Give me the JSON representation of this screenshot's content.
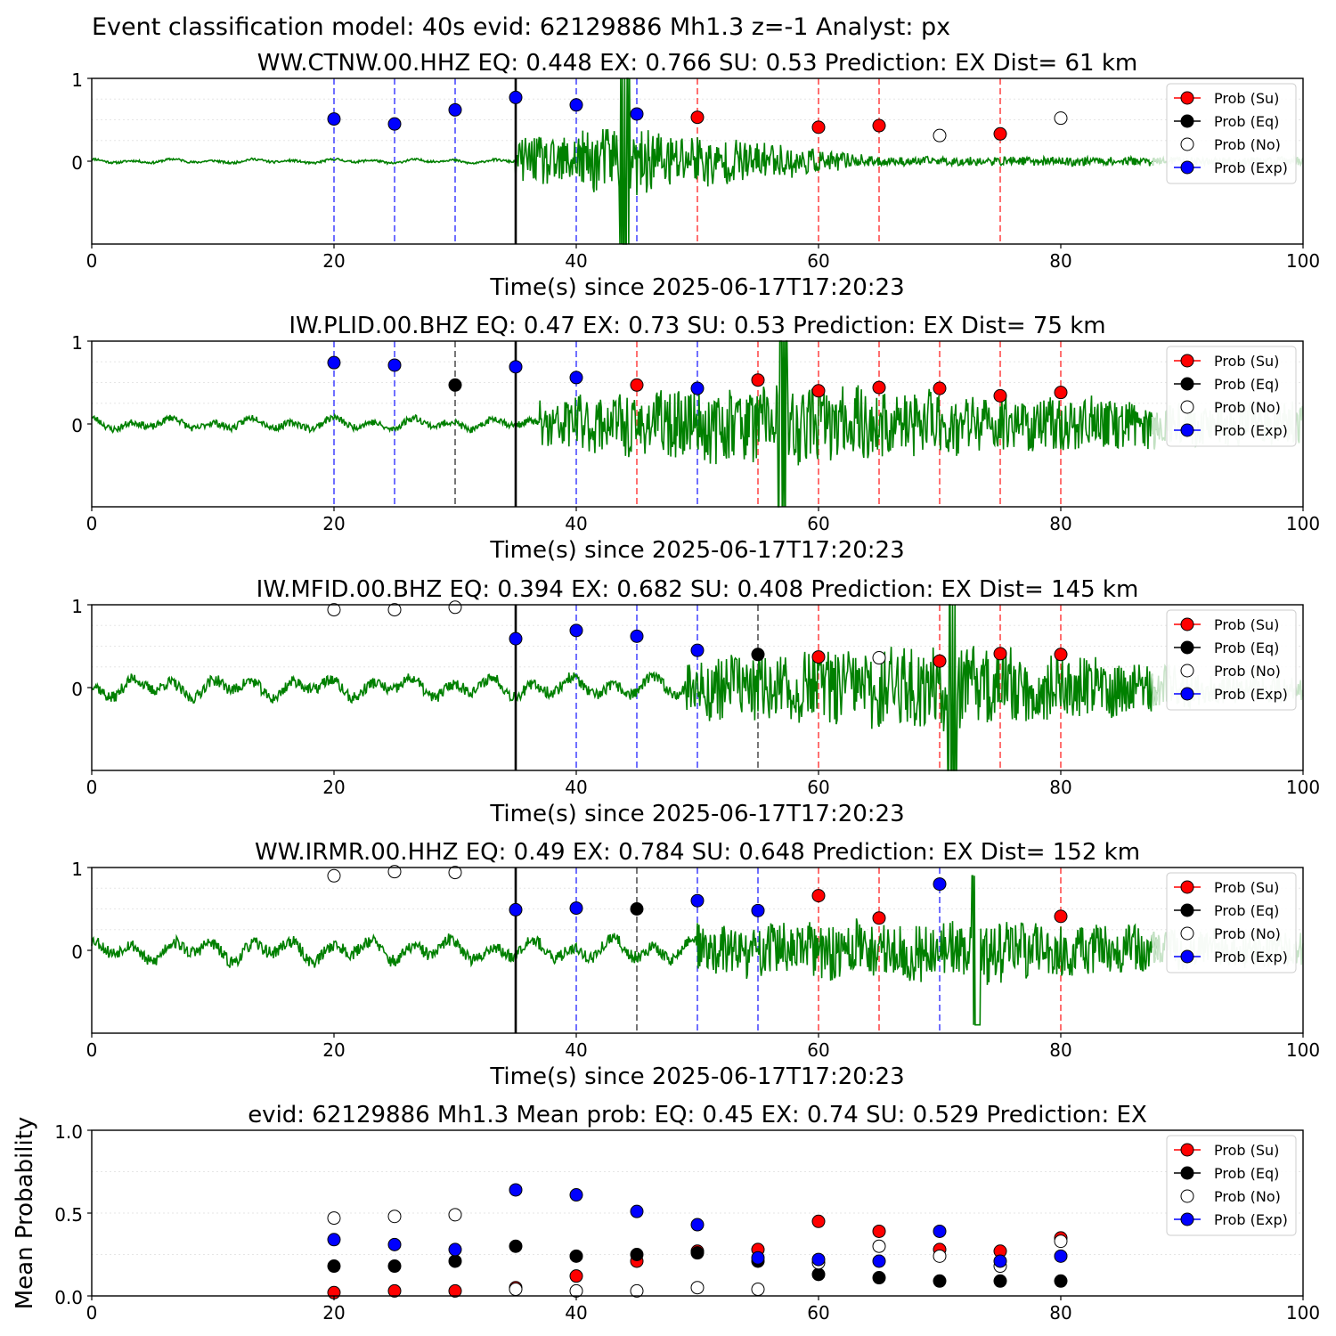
{
  "figure_title": "Event classification model: 40s evid: 62129886 Mh1.3 z=-1 Analyst: px",
  "colors": {
    "su": "#ff0000",
    "eq": "#000000",
    "exp": "#0000ff",
    "trace": "#008000",
    "trace_faded": "#c7e3c7",
    "vline_su": "#ff4d4d",
    "vline_eq": "#555555",
    "vline_exp": "#4d4dff"
  },
  "legend_labels": [
    "Prob (Su)",
    "Prob (Eq)",
    "Prob (No)",
    "Prob (Exp)"
  ],
  "chart_data": [
    {
      "type": "scatter",
      "title": "WW.CTNW.00.HHZ   EQ: 0.448  EX: 0.766  SU: 0.53   Prediction: EX    Dist= 61 km",
      "xlabel": "Time(s) since 2025-06-17T17:20:23",
      "ylabel": "",
      "xlim": [
        0,
        100
      ],
      "ylim": [
        -1,
        1
      ],
      "xticks": [
        "0",
        "20",
        "40",
        "60",
        "80",
        "100"
      ],
      "yticks": [
        "0",
        "1"
      ],
      "arrival_time": 35,
      "waveform": {
        "onset": 35,
        "pre_amp": 0.04,
        "post_amp": 0.5,
        "peak_time": 44,
        "decay_end": 65,
        "tail_amp": 0.06,
        "seed": 11
      },
      "points": [
        {
          "t": 20,
          "p": 0.51,
          "class": "exp"
        },
        {
          "t": 25,
          "p": 0.45,
          "class": "exp"
        },
        {
          "t": 30,
          "p": 0.62,
          "class": "exp"
        },
        {
          "t": 35,
          "p": 0.77,
          "class": "exp"
        },
        {
          "t": 40,
          "p": 0.68,
          "class": "exp"
        },
        {
          "t": 45,
          "p": 0.57,
          "class": "exp"
        },
        {
          "t": 50,
          "p": 0.53,
          "class": "su"
        },
        {
          "t": 60,
          "p": 0.41,
          "class": "su"
        },
        {
          "t": 65,
          "p": 0.43,
          "class": "su"
        },
        {
          "t": 70,
          "p": 0.31,
          "class": "no"
        },
        {
          "t": 75,
          "p": 0.33,
          "class": "su"
        },
        {
          "t": 80,
          "p": 0.52,
          "class": "no"
        }
      ]
    },
    {
      "type": "scatter",
      "title": "IW.PLID.00.BHZ   EQ: 0.47  EX: 0.73  SU: 0.53   Prediction: EX    Dist= 75 km",
      "xlabel": "Time(s) since 2025-06-17T17:20:23",
      "ylabel": "",
      "xlim": [
        0,
        100
      ],
      "ylim": [
        -1,
        1
      ],
      "xticks": [
        "0",
        "20",
        "40",
        "60",
        "80",
        "100"
      ],
      "yticks": [
        "0",
        "1"
      ],
      "arrival_time": 35,
      "waveform": {
        "onset": 37,
        "pre_amp": 0.12,
        "post_amp": 0.55,
        "peak_time": 57,
        "decay_end": 90,
        "tail_amp": 0.3,
        "seed": 23
      },
      "points": [
        {
          "t": 20,
          "p": 0.74,
          "class": "exp"
        },
        {
          "t": 25,
          "p": 0.71,
          "class": "exp"
        },
        {
          "t": 30,
          "p": 0.47,
          "class": "eq"
        },
        {
          "t": 35,
          "p": 0.69,
          "class": "exp"
        },
        {
          "t": 40,
          "p": 0.56,
          "class": "exp"
        },
        {
          "t": 45,
          "p": 0.47,
          "class": "su"
        },
        {
          "t": 50,
          "p": 0.43,
          "class": "exp"
        },
        {
          "t": 55,
          "p": 0.53,
          "class": "su"
        },
        {
          "t": 60,
          "p": 0.4,
          "class": "su"
        },
        {
          "t": 65,
          "p": 0.44,
          "class": "su"
        },
        {
          "t": 70,
          "p": 0.43,
          "class": "su"
        },
        {
          "t": 75,
          "p": 0.34,
          "class": "su"
        },
        {
          "t": 80,
          "p": 0.38,
          "class": "su"
        }
      ]
    },
    {
      "type": "scatter",
      "title": "IW.MFID.00.BHZ   EQ: 0.394  EX: 0.682  SU: 0.408   Prediction: EX    Dist= 145 km",
      "xlabel": "Time(s) since 2025-06-17T17:20:23",
      "ylabel": "",
      "xlim": [
        0,
        100
      ],
      "ylim": [
        -1,
        1
      ],
      "xticks": [
        "0",
        "20",
        "40",
        "60",
        "80",
        "100"
      ],
      "yticks": [
        "0",
        "1"
      ],
      "arrival_time": 35,
      "waveform": {
        "onset": 49,
        "pre_amp": 0.2,
        "post_amp": 0.6,
        "peak_time": 71,
        "decay_end": 95,
        "tail_amp": 0.2,
        "seed": 37
      },
      "points": [
        {
          "t": 20,
          "p": 0.94,
          "class": "no"
        },
        {
          "t": 25,
          "p": 0.94,
          "class": "no"
        },
        {
          "t": 30,
          "p": 0.97,
          "class": "no"
        },
        {
          "t": 35,
          "p": 0.59,
          "class": "exp"
        },
        {
          "t": 40,
          "p": 0.69,
          "class": "exp"
        },
        {
          "t": 45,
          "p": 0.62,
          "class": "exp"
        },
        {
          "t": 50,
          "p": 0.45,
          "class": "exp"
        },
        {
          "t": 55,
          "p": 0.4,
          "class": "eq"
        },
        {
          "t": 60,
          "p": 0.37,
          "class": "su"
        },
        {
          "t": 65,
          "p": 0.36,
          "class": "no"
        },
        {
          "t": 70,
          "p": 0.32,
          "class": "su"
        },
        {
          "t": 75,
          "p": 0.41,
          "class": "su"
        },
        {
          "t": 80,
          "p": 0.4,
          "class": "su"
        }
      ]
    },
    {
      "type": "scatter",
      "title": "WW.IRMR.00.HHZ   EQ: 0.49  EX: 0.784  SU: 0.648   Prediction: EX    Dist= 152 km",
      "xlabel": "Time(s) since 2025-06-17T17:20:23",
      "ylabel": "",
      "xlim": [
        0,
        100
      ],
      "ylim": [
        -1,
        1
      ],
      "xticks": [
        "0",
        "20",
        "40",
        "60",
        "80",
        "100"
      ],
      "yticks": [
        "0",
        "1"
      ],
      "arrival_time": 35,
      "waveform": {
        "onset": 50,
        "pre_amp": 0.22,
        "post_amp": 0.45,
        "peak_time": 73,
        "decay_end": 95,
        "tail_amp": 0.25,
        "seed": 53
      },
      "points": [
        {
          "t": 20,
          "p": 0.9,
          "class": "no"
        },
        {
          "t": 25,
          "p": 0.95,
          "class": "no"
        },
        {
          "t": 30,
          "p": 0.94,
          "class": "no"
        },
        {
          "t": 35,
          "p": 0.49,
          "class": "exp"
        },
        {
          "t": 40,
          "p": 0.51,
          "class": "exp"
        },
        {
          "t": 45,
          "p": 0.5,
          "class": "eq"
        },
        {
          "t": 50,
          "p": 0.6,
          "class": "exp"
        },
        {
          "t": 55,
          "p": 0.48,
          "class": "exp"
        },
        {
          "t": 60,
          "p": 0.66,
          "class": "su"
        },
        {
          "t": 65,
          "p": 0.39,
          "class": "su"
        },
        {
          "t": 70,
          "p": 0.8,
          "class": "exp"
        },
        {
          "t": 80,
          "p": 0.41,
          "class": "su"
        }
      ]
    },
    {
      "type": "scatter",
      "title": "evid: 62129886  Mh1.3   Mean prob:   EQ: 0.45  EX: 0.74  SU: 0.529   Prediction: EX",
      "xlabel": "",
      "ylabel": "Mean Probability",
      "xlim": [
        0,
        100
      ],
      "ylim": [
        0,
        1
      ],
      "xticks": [
        "0",
        "20",
        "40",
        "60",
        "80",
        "100"
      ],
      "yticks": [
        "0.0",
        "0.5",
        "1.0"
      ],
      "x": [
        20,
        25,
        30,
        35,
        40,
        45,
        50,
        55,
        60,
        65,
        70,
        75,
        80
      ],
      "series": [
        {
          "name": "Prob (Su)",
          "class": "su",
          "values": [
            0.02,
            0.03,
            0.03,
            0.05,
            0.12,
            0.21,
            0.27,
            0.28,
            0.45,
            0.39,
            0.28,
            0.27,
            0.35
          ]
        },
        {
          "name": "Prob (Eq)",
          "class": "eq",
          "values": [
            0.18,
            0.18,
            0.21,
            0.3,
            0.24,
            0.25,
            0.26,
            0.21,
            0.13,
            0.11,
            0.09,
            0.09,
            0.09
          ]
        },
        {
          "name": "Prob (No)",
          "class": "no",
          "values": [
            0.47,
            0.48,
            0.49,
            0.04,
            0.03,
            0.03,
            0.05,
            0.04,
            0.2,
            0.3,
            0.24,
            0.18,
            0.33
          ]
        },
        {
          "name": "Prob (Exp)",
          "class": "exp",
          "values": [
            0.34,
            0.31,
            0.28,
            0.64,
            0.61,
            0.51,
            0.43,
            0.23,
            0.22,
            0.21,
            0.39,
            0.21,
            0.24
          ]
        }
      ]
    }
  ]
}
